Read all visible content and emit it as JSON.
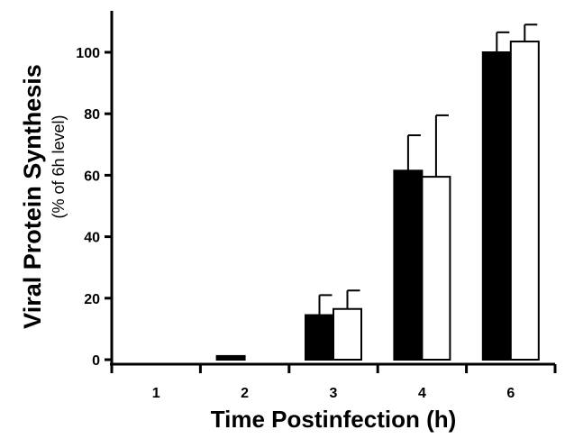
{
  "chart_data": {
    "type": "bar",
    "categories": [
      "1",
      "2",
      "3",
      "4",
      "6"
    ],
    "series": [
      {
        "fill": "#000000",
        "values": [
          0,
          1.2,
          14.5,
          61.5,
          100
        ],
        "errors": [
          0,
          0,
          6.5,
          11.5,
          6.5
        ]
      },
      {
        "fill": "#ffffff",
        "values": [
          0,
          0,
          16.5,
          59.5,
          103.5
        ],
        "errors": [
          0,
          0,
          6,
          20,
          5.5
        ]
      }
    ],
    "yticks": [
      0,
      20,
      40,
      60,
      80,
      100
    ],
    "ylim": [
      0,
      115
    ],
    "xlabel": "Time Postinfection (h)",
    "ylabel": "Viral Protein Synthesis",
    "ylabel_sub": "(% of 6h level)",
    "grid": false,
    "legend": "none"
  }
}
